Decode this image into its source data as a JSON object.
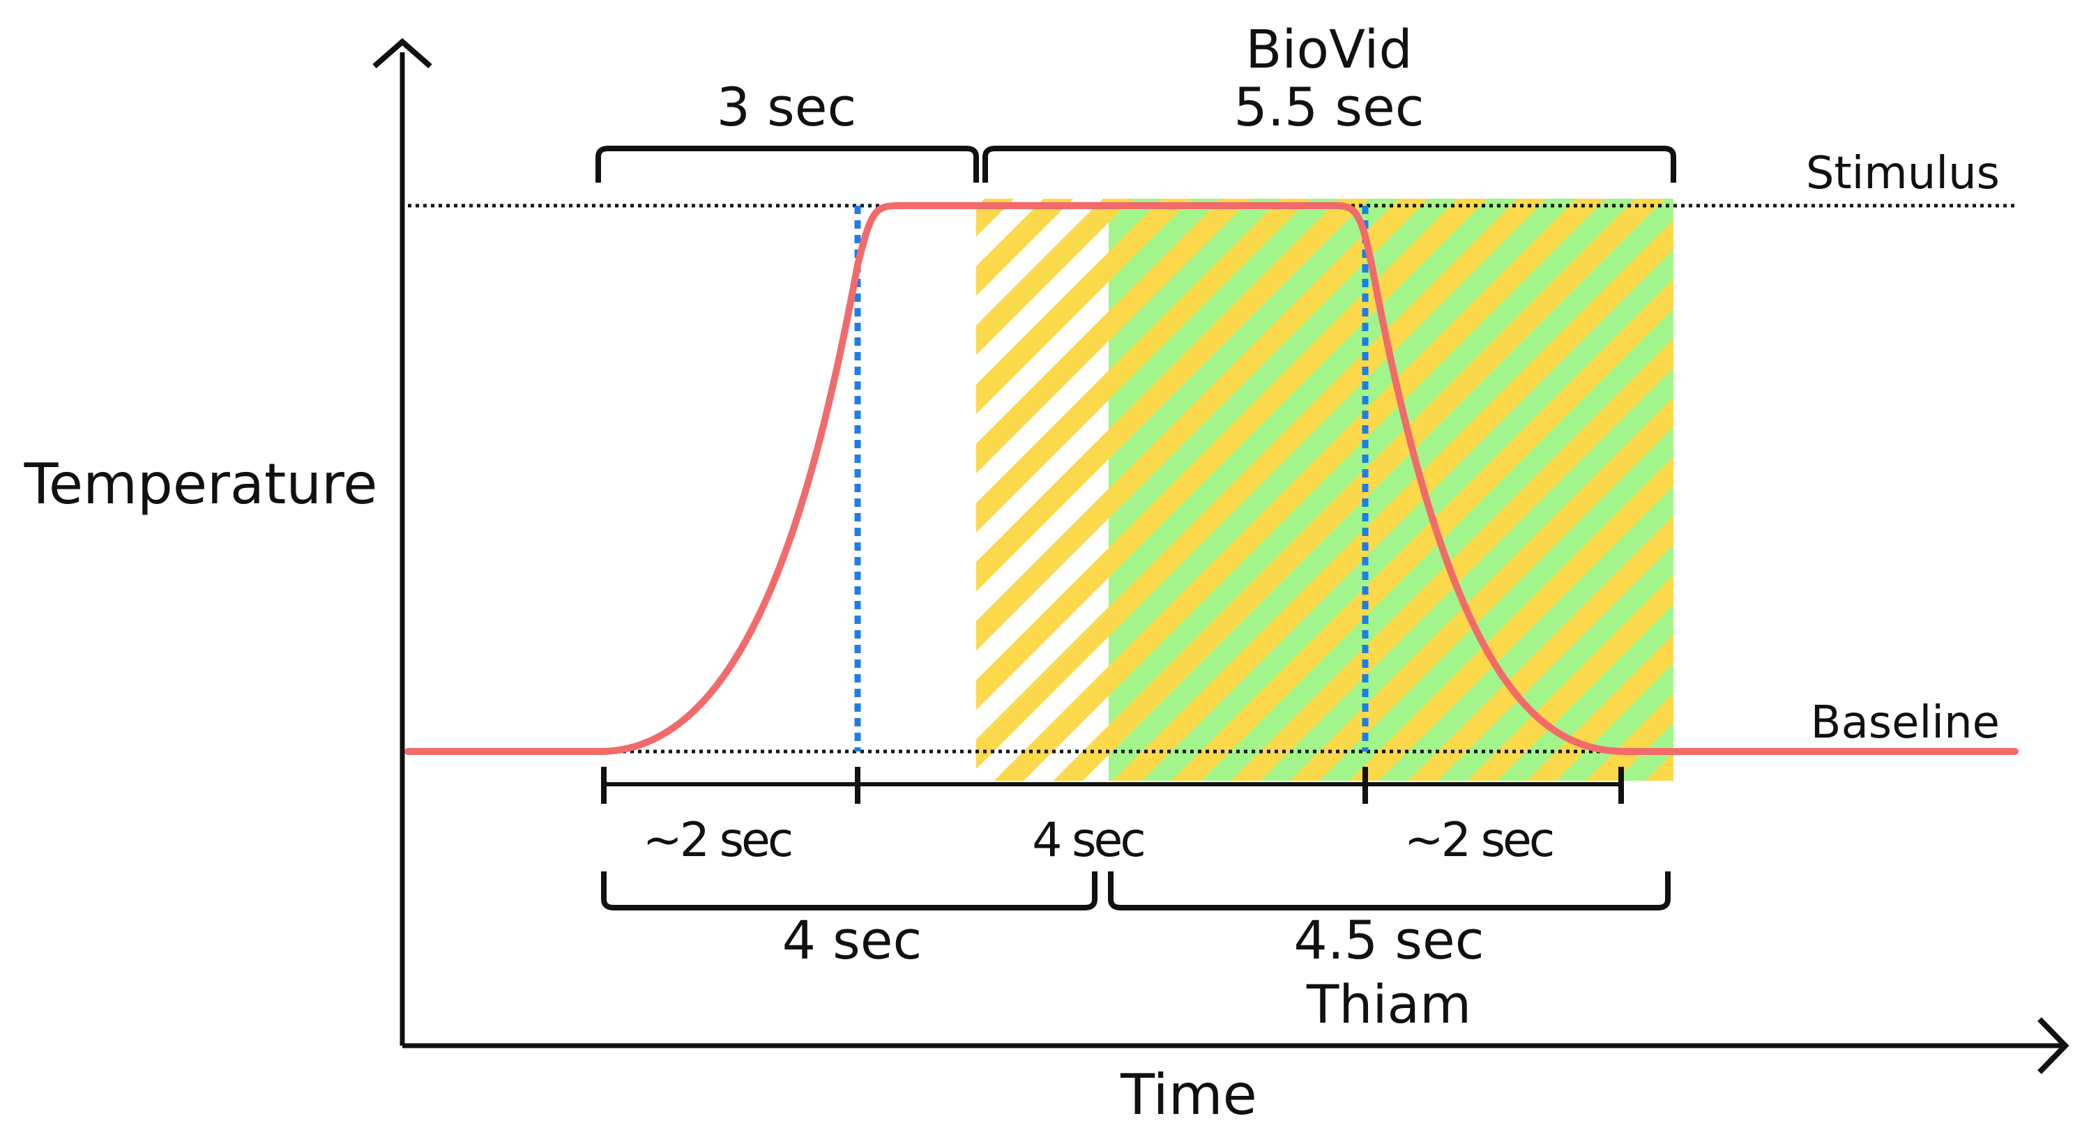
{
  "axes": {
    "y_label": "Temperature",
    "x_label": "Time"
  },
  "levels": {
    "stimulus": "Stimulus",
    "baseline": "Baseline"
  },
  "top_brackets": {
    "left_duration": "3 sec",
    "right_title": "BioVid",
    "right_duration": "5.5 sec"
  },
  "segments": {
    "ramp_up": "~2 sec",
    "plateau": "4 sec",
    "ramp_down": "~2 sec"
  },
  "bottom_brackets": {
    "left_duration": "4 sec",
    "right_duration": "4.5 sec",
    "right_title": "Thiam"
  },
  "colors": {
    "curve": "#f26a6a",
    "marker": "#1e7ee6",
    "biovid_window": "#fbd94a",
    "thiam_window": "#a2f58a",
    "axis": "#111111"
  }
}
